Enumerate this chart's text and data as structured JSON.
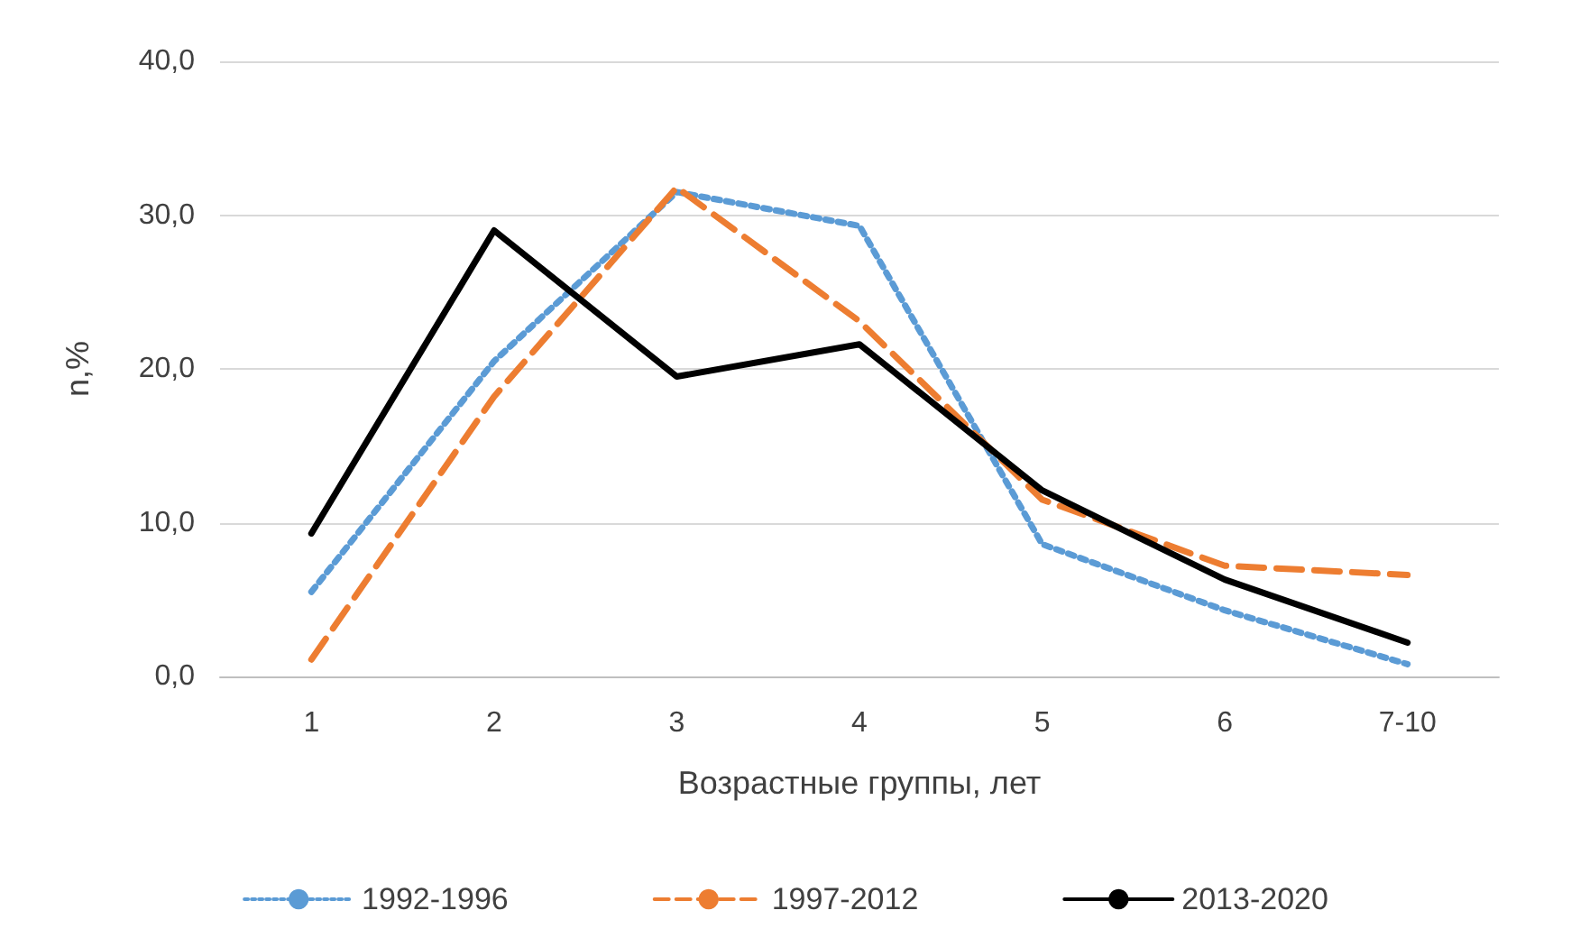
{
  "chart_data": {
    "type": "line",
    "xlabel": "Возрастные группы, лет",
    "ylabel": "n,%",
    "categories": [
      "1",
      "2",
      "3",
      "4",
      "5",
      "6",
      "7-10"
    ],
    "series": [
      {
        "name": "1992-1996",
        "color": "#5b9bd5",
        "line_style": "dotted",
        "values": [
          5.5,
          20.5,
          31.5,
          29.3,
          8.6,
          4.3,
          0.8
        ]
      },
      {
        "name": "1997-2012",
        "color": "#ed7d31",
        "line_style": "dashed",
        "values": [
          1.1,
          18.2,
          31.8,
          23.1,
          11.5,
          7.2,
          6.6
        ]
      },
      {
        "name": "2013-2020",
        "color": "#000000",
        "line_style": "solid",
        "values": [
          9.3,
          29.0,
          19.5,
          21.6,
          12.1,
          6.3,
          2.2
        ]
      }
    ],
    "ylim": [
      0,
      40
    ],
    "yticks": [
      {
        "value": 0,
        "label": "0,0"
      },
      {
        "value": 10,
        "label": "10,0"
      },
      {
        "value": 20,
        "label": "20,0"
      },
      {
        "value": 30,
        "label": "30,0"
      },
      {
        "value": 40,
        "label": "40,0"
      }
    ],
    "grid": "y",
    "legend": "bottom",
    "marker": "none"
  }
}
